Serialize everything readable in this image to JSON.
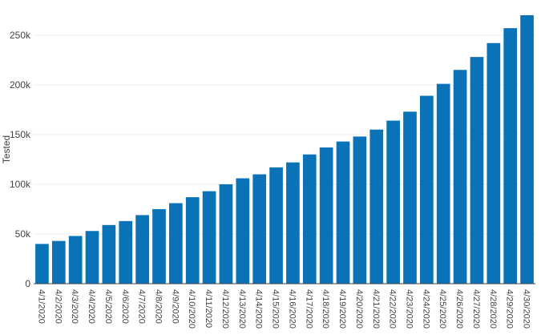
{
  "chart_data": {
    "type": "bar",
    "ylabel": "Tested",
    "ylim": [
      0,
      270000
    ],
    "yticks": [
      {
        "value": 0,
        "label": "0"
      },
      {
        "value": 50000,
        "label": "50k"
      },
      {
        "value": 100000,
        "label": "100k"
      },
      {
        "value": 150000,
        "label": "150k"
      },
      {
        "value": 200000,
        "label": "200k"
      },
      {
        "value": 250000,
        "label": "250k"
      }
    ],
    "categories": [
      "4/1/2020",
      "4/2/2020",
      "4/3/2020",
      "4/4/2020",
      "4/5/2020",
      "4/6/2020",
      "4/7/2020",
      "4/8/2020",
      "4/9/2020",
      "4/10/2020",
      "4/11/2020",
      "4/12/2020",
      "4/13/2020",
      "4/14/2020",
      "4/15/2020",
      "4/16/2020",
      "4/17/2020",
      "4/18/2020",
      "4/19/2020",
      "4/20/2020",
      "4/21/2020",
      "4/22/2020",
      "4/23/2020",
      "4/24/2020",
      "4/25/2020",
      "4/26/2020",
      "4/27/2020",
      "4/28/2020",
      "4/29/2020",
      "4/30/2020"
    ],
    "values": [
      40000,
      43000,
      48000,
      53000,
      59000,
      63000,
      69000,
      75000,
      81000,
      87000,
      93000,
      100000,
      106000,
      110000,
      117000,
      122000,
      130000,
      137000,
      143000,
      148000,
      155000,
      164000,
      173000,
      189000,
      201000,
      215000,
      228000,
      242000,
      257000,
      270000
    ],
    "bar_color": "#0a73b8",
    "grid": true,
    "legend": "none"
  }
}
